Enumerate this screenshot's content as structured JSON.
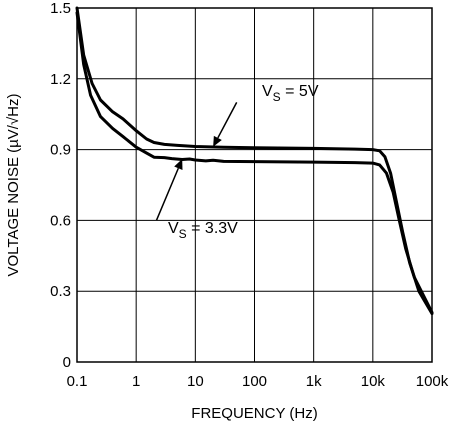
{
  "chart_data": {
    "type": "line",
    "xlabel": "FREQUENCY (Hz)",
    "ylabel": "VOLTAGE NOISE (µV/√Hz)",
    "xscale": "log",
    "xlim": [
      0.1,
      100000
    ],
    "ylim": [
      0,
      1.5
    ],
    "grid": true,
    "x_ticks": [
      {
        "value": 0.1,
        "label": "0.1"
      },
      {
        "value": 1,
        "label": "1"
      },
      {
        "value": 10,
        "label": "10"
      },
      {
        "value": 100,
        "label": "100"
      },
      {
        "value": 1000,
        "label": "1k"
      },
      {
        "value": 10000,
        "label": "10k"
      },
      {
        "value": 100000,
        "label": "100k"
      }
    ],
    "y_ticks": [
      {
        "value": 0,
        "label": "0"
      },
      {
        "value": 0.3,
        "label": "0.3"
      },
      {
        "value": 0.6,
        "label": "0.6"
      },
      {
        "value": 0.9,
        "label": "0.9"
      },
      {
        "value": 1.2,
        "label": "1.2"
      },
      {
        "value": 1.5,
        "label": "1.5"
      }
    ],
    "series": [
      {
        "name": "VS = 5V",
        "points": [
          [
            0.1,
            1.5
          ],
          [
            0.13,
            1.3
          ],
          [
            0.18,
            1.18
          ],
          [
            0.25,
            1.11
          ],
          [
            0.4,
            1.06
          ],
          [
            0.6,
            1.03
          ],
          [
            1,
            0.98
          ],
          [
            1.5,
            0.945
          ],
          [
            2,
            0.93
          ],
          [
            3,
            0.922
          ],
          [
            5,
            0.918
          ],
          [
            10,
            0.913
          ],
          [
            30,
            0.91
          ],
          [
            100,
            0.908
          ],
          [
            1000,
            0.905
          ],
          [
            5000,
            0.902
          ],
          [
            10000,
            0.9
          ],
          [
            13000,
            0.895
          ],
          [
            16000,
            0.87
          ],
          [
            20000,
            0.8
          ],
          [
            25000,
            0.68
          ],
          [
            32000,
            0.55
          ],
          [
            42000,
            0.42
          ],
          [
            60000,
            0.3
          ],
          [
            100000,
            0.205
          ]
        ]
      },
      {
        "name": "VS = 3.3V",
        "points": [
          [
            0.1,
            1.48
          ],
          [
            0.13,
            1.26
          ],
          [
            0.17,
            1.13
          ],
          [
            0.25,
            1.04
          ],
          [
            0.4,
            0.99
          ],
          [
            0.6,
            0.955
          ],
          [
            1,
            0.91
          ],
          [
            1.5,
            0.885
          ],
          [
            2,
            0.868
          ],
          [
            3,
            0.866
          ],
          [
            4,
            0.862
          ],
          [
            6,
            0.858
          ],
          [
            8,
            0.86
          ],
          [
            10,
            0.856
          ],
          [
            15,
            0.852
          ],
          [
            20,
            0.855
          ],
          [
            30,
            0.85
          ],
          [
            100,
            0.849
          ],
          [
            1000,
            0.847
          ],
          [
            5000,
            0.845
          ],
          [
            10000,
            0.843
          ],
          [
            13000,
            0.835
          ],
          [
            17000,
            0.8
          ],
          [
            22000,
            0.72
          ],
          [
            28000,
            0.6
          ],
          [
            36000,
            0.48
          ],
          [
            50000,
            0.36
          ],
          [
            100000,
            0.21
          ]
        ]
      }
    ],
    "annotations": [
      {
        "main": "V",
        "sub": "S",
        "rest": " = 5V",
        "target": [
          20,
          0.912
        ],
        "anchor": [
          50,
          1.1
        ]
      },
      {
        "main": "V",
        "sub": "S",
        "rest": " = 3.3V",
        "target": [
          6,
          0.86
        ],
        "anchor": [
          2.2,
          0.6
        ]
      }
    ]
  }
}
